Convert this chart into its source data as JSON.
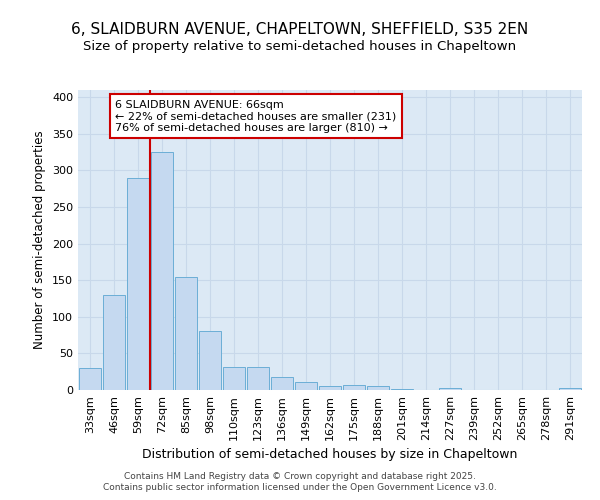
{
  "title_line1": "6, SLAIDBURN AVENUE, CHAPELTOWN, SHEFFIELD, S35 2EN",
  "title_line2": "Size of property relative to semi-detached houses in Chapeltown",
  "xlabel": "Distribution of semi-detached houses by size in Chapeltown",
  "ylabel": "Number of semi-detached properties",
  "categories": [
    "33sqm",
    "46sqm",
    "59sqm",
    "72sqm",
    "85sqm",
    "98sqm",
    "110sqm",
    "123sqm",
    "136sqm",
    "149sqm",
    "162sqm",
    "175sqm",
    "188sqm",
    "201sqm",
    "214sqm",
    "227sqm",
    "239sqm",
    "252sqm",
    "265sqm",
    "278sqm",
    "291sqm"
  ],
  "values": [
    30,
    130,
    290,
    325,
    155,
    80,
    31,
    31,
    18,
    11,
    5,
    7,
    6,
    2,
    0,
    3,
    0,
    0,
    0,
    0,
    3
  ],
  "bar_color": "#c5d9f0",
  "bar_edge_color": "#6baed6",
  "red_line_x": 2.5,
  "property_label": "6 SLAIDBURN AVENUE: 66sqm",
  "smaller_label": "← 22% of semi-detached houses are smaller (231)",
  "larger_label": "76% of semi-detached houses are larger (810) →",
  "annotation_box_color": "#ffffff",
  "annotation_box_edge": "#cc0000",
  "red_line_color": "#cc0000",
  "grid_color": "#c8d8ea",
  "background_color": "#dce9f5",
  "footer": "Contains HM Land Registry data © Crown copyright and database right 2025.\nContains public sector information licensed under the Open Government Licence v3.0.",
  "ylim": [
    0,
    410
  ],
  "yticks": [
    0,
    50,
    100,
    150,
    200,
    250,
    300,
    350,
    400
  ],
  "title1_fontsize": 11,
  "title2_fontsize": 9.5,
  "xlabel_fontsize": 9,
  "ylabel_fontsize": 8.5,
  "tick_fontsize": 8,
  "footer_fontsize": 6.5,
  "annot_fontsize": 8
}
